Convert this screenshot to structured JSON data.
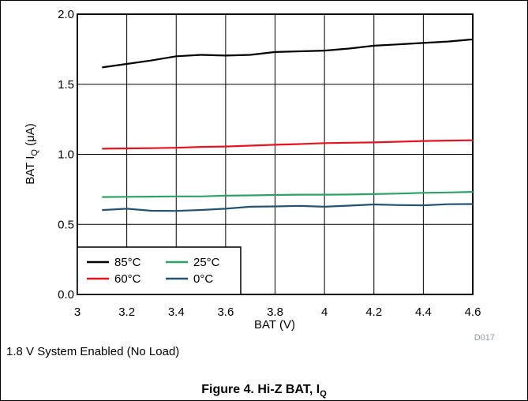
{
  "chart_data": {
    "type": "line",
    "title": "",
    "xlabel": "BAT (V)",
    "ylabel_main": "BAT I",
    "ylabel_sub": "Q",
    "ylabel_unit": " (μA)",
    "xlim": [
      3,
      4.6
    ],
    "ylim": [
      0,
      2.0
    ],
    "x_ticks": [
      "3",
      "3.2",
      "3.4",
      "3.6",
      "3.8",
      "4",
      "4.2",
      "4.4",
      "4.6"
    ],
    "y_ticks": [
      "0.0",
      "0.5",
      "1.0",
      "1.5",
      "2.0"
    ],
    "grid": true,
    "legend_placement": "bottom-left",
    "x": [
      3.1,
      3.2,
      3.3,
      3.4,
      3.5,
      3.6,
      3.7,
      3.8,
      3.9,
      4.0,
      4.1,
      4.2,
      4.3,
      4.4,
      4.5,
      4.6
    ],
    "series": [
      {
        "name": "85°C",
        "color": "#000000",
        "values": [
          1.62,
          1.645,
          1.67,
          1.7,
          1.71,
          1.705,
          1.71,
          1.73,
          1.735,
          1.74,
          1.755,
          1.775,
          1.785,
          1.795,
          1.805,
          1.82
        ]
      },
      {
        "name": "60°C",
        "color": "#e8121f",
        "values": [
          1.04,
          1.042,
          1.044,
          1.047,
          1.053,
          1.056,
          1.062,
          1.068,
          1.073,
          1.08,
          1.083,
          1.085,
          1.09,
          1.095,
          1.098,
          1.1
        ]
      },
      {
        "name": "25°C",
        "color": "#2fa167",
        "values": [
          0.695,
          0.697,
          0.698,
          0.7,
          0.7,
          0.705,
          0.707,
          0.71,
          0.712,
          0.712,
          0.713,
          0.716,
          0.72,
          0.725,
          0.728,
          0.732
        ]
      },
      {
        "name": "0°C",
        "color": "#245372",
        "values": [
          0.602,
          0.612,
          0.597,
          0.596,
          0.603,
          0.612,
          0.626,
          0.628,
          0.632,
          0.626,
          0.634,
          0.642,
          0.638,
          0.636,
          0.644,
          0.645
        ]
      }
    ],
    "watermark": "D017"
  },
  "caption": {
    "note": "1.8 V System Enabled (No Load)",
    "figure": "Figure 4. Hi-Z BAT, I",
    "figure_sub": "Q"
  }
}
